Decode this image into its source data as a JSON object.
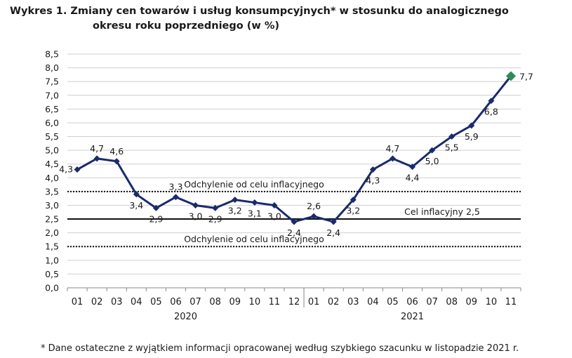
{
  "chart_data": {
    "type": "line",
    "title_line1": "Wykres 1. Zmiany cen towarów i usług konsumpcyjnych* w stosunku do analogicznego",
    "title_line2": "okresu roku poprzedniego (w %)",
    "x": [
      "01",
      "02",
      "03",
      "04",
      "05",
      "06",
      "07",
      "08",
      "09",
      "10",
      "11",
      "12",
      "01",
      "02",
      "03",
      "04",
      "05",
      "06",
      "07",
      "08",
      "09",
      "10",
      "11"
    ],
    "years": [
      {
        "label": "2020",
        "from": 0,
        "to": 11
      },
      {
        "label": "2021",
        "from": 12,
        "to": 22
      }
    ],
    "values": [
      4.3,
      4.7,
      4.6,
      3.4,
      2.9,
      3.3,
      3.0,
      2.9,
      3.2,
      3.1,
      3.0,
      2.4,
      2.6,
      2.4,
      3.2,
      4.3,
      4.7,
      4.4,
      5.0,
      5.5,
      5.9,
      6.8,
      7.7
    ],
    "data_labels": [
      "4,3",
      "4,7",
      "4,6",
      "3,4",
      "2,9",
      "3,3",
      "3,0",
      "2,9",
      "3,2",
      "3,1",
      "3,0",
      "2,4",
      "2,6",
      "2,4",
      "3,2",
      "4,3",
      "4,7",
      "4,4",
      "5,0",
      "5,5",
      "5,9",
      "6,8",
      "7,7"
    ],
    "label_above": [
      false,
      true,
      true,
      false,
      false,
      true,
      false,
      false,
      false,
      false,
      false,
      false,
      true,
      false,
      false,
      false,
      true,
      false,
      false,
      false,
      false,
      false,
      false
    ],
    "ylim": [
      0,
      8.5
    ],
    "y_ticks": [
      "0,0",
      "0,5",
      "1,0",
      "1,5",
      "2,0",
      "2,5",
      "3,0",
      "3,5",
      "4,0",
      "4,5",
      "5,0",
      "5,5",
      "6,0",
      "6,5",
      "7,0",
      "7,5",
      "8,0",
      "8,5"
    ],
    "reference_lines": [
      {
        "value": 2.5,
        "style": "solid",
        "label": "Cel inflacyjny 2,5"
      },
      {
        "value": 3.5,
        "style": "dotted",
        "label": "Odchylenie od celu inflacyjnego"
      },
      {
        "value": 1.5,
        "style": "dotted",
        "label": "Odchylenie od celu inflacyjnego"
      }
    ],
    "line_color": "#1a2a6c",
    "last_marker_color": "#2e8b57",
    "grid": true
  },
  "footnote": "* Dane ostateczne z wyjątkiem informacji opracowanej według szybkiego szacunku w listopadzie 2021 r."
}
